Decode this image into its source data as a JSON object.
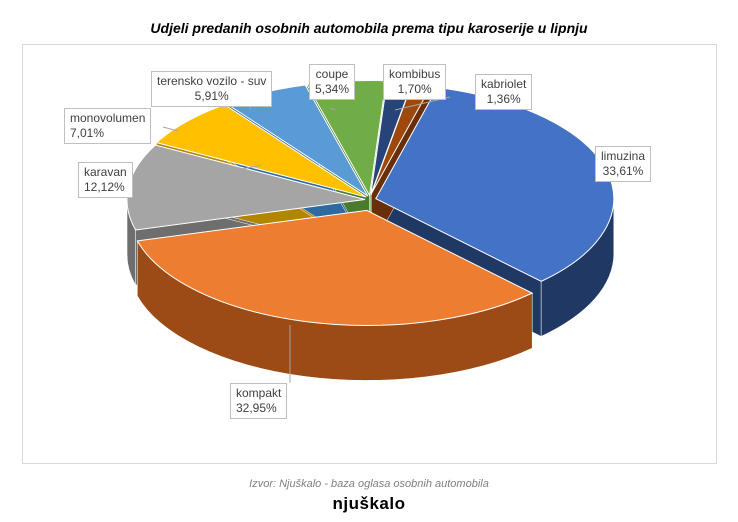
{
  "chart_data": {
    "type": "pie",
    "title": "Udjeli predanih osobnih automobila prema tipu karoserije u lipnju",
    "three_d": true,
    "slices": [
      {
        "label": "limuzina",
        "value": 33.61,
        "display": "33,61%",
        "color": "#4472C4",
        "side": "#1F3864"
      },
      {
        "label": "kompakt",
        "value": 32.95,
        "display": "32,95%",
        "color": "#ED7D31",
        "side": "#9C4A16"
      },
      {
        "label": "karavan",
        "value": 12.12,
        "display": "12,12%",
        "color": "#A5A5A5",
        "side": "#6E6E6E"
      },
      {
        "label": "monovolumen",
        "value": 7.01,
        "display": "7,01%",
        "color": "#FFC000",
        "side": "#B38600"
      },
      {
        "label": "terensko vozilo - suv",
        "value": 5.91,
        "display": "5,91%",
        "color": "#5B9BD5",
        "side": "#2E6AA0"
      },
      {
        "label": "coupe",
        "value": 5.34,
        "display": "5,34%",
        "color": "#70AD47",
        "side": "#4A7A2C"
      },
      {
        "label": "kombibus",
        "value": 1.7,
        "display": "1,70%",
        "color": "#264478",
        "side": "#14254A"
      },
      {
        "label": "kabriolet",
        "value": 1.36,
        "display": "1,36%",
        "color": "#9E480E",
        "side": "#6A2F08"
      }
    ]
  },
  "footer": {
    "source": "Izvor: Njuškalo -  baza oglasa osobnih automobila",
    "logo": "njuškalo"
  }
}
